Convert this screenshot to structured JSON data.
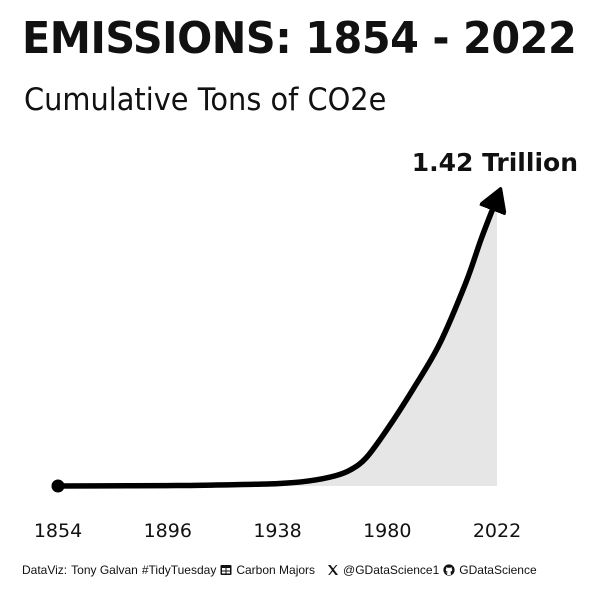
{
  "header": {
    "title": "EMISSIONS: 1854 - 2022",
    "subtitle": "Cumulative Tons of CO2e"
  },
  "chart_data": {
    "type": "area",
    "title": "EMISSIONS: 1854 - 2022",
    "subtitle": "Cumulative Tons of CO2e",
    "xlabel": "",
    "ylabel": "",
    "x_ticks": [
      1854,
      1896,
      1938,
      1980,
      2022
    ],
    "xlim": [
      1854,
      2022
    ],
    "ylim": [
      0,
      1.42
    ],
    "y_unit": "trillion tons CO2e",
    "grid": false,
    "legend": "none",
    "series": [
      {
        "x": [
          1854,
          1870,
          1896,
          1910,
          1938,
          1950,
          1960,
          1966,
          1972,
          1980,
          1990,
          2000,
          2010,
          2016,
          2022
        ],
        "y": [
          0,
          0.0005,
          0.002,
          0.004,
          0.012,
          0.025,
          0.05,
          0.08,
          0.14,
          0.28,
          0.48,
          0.7,
          1.0,
          1.22,
          1.42
        ]
      }
    ],
    "annotation": "1.42 Trillion",
    "colors": {
      "line": "#000000",
      "fill": "#e6e6e6",
      "text": "#111111"
    }
  },
  "footer": {
    "dataviz_label": "DataViz:",
    "author": "Tony Galvan",
    "hashtag": "#TidyTuesday",
    "source_icon": "table-icon",
    "source": "Carbon Majors",
    "x_icon": "x-logo-icon",
    "x_handle": "@GDataScience1",
    "github_icon": "github-icon",
    "github_handle": "GDataScience"
  }
}
